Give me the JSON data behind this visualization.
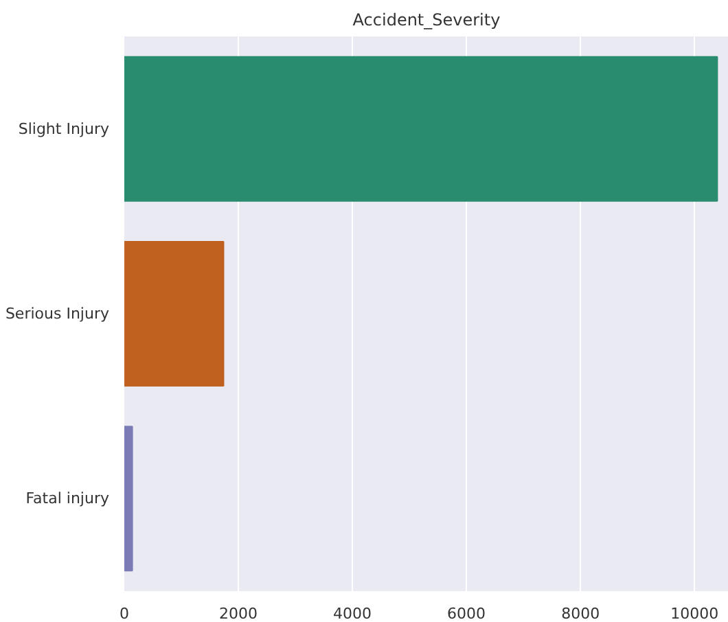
{
  "chart_data": {
    "type": "bar",
    "orientation": "horizontal",
    "title": "Accident_Severity",
    "categories": [
      "Slight Injury",
      "Serious Injury",
      "Fatal injury"
    ],
    "values": [
      10400,
      1740,
      140
    ],
    "colors": [
      "#2a8c6e",
      "#c1611f",
      "#7b7bb5"
    ],
    "xlim": [
      0,
      10600
    ],
    "xticks": [
      0,
      2000,
      4000,
      6000,
      8000,
      10000
    ],
    "grid": "x"
  }
}
